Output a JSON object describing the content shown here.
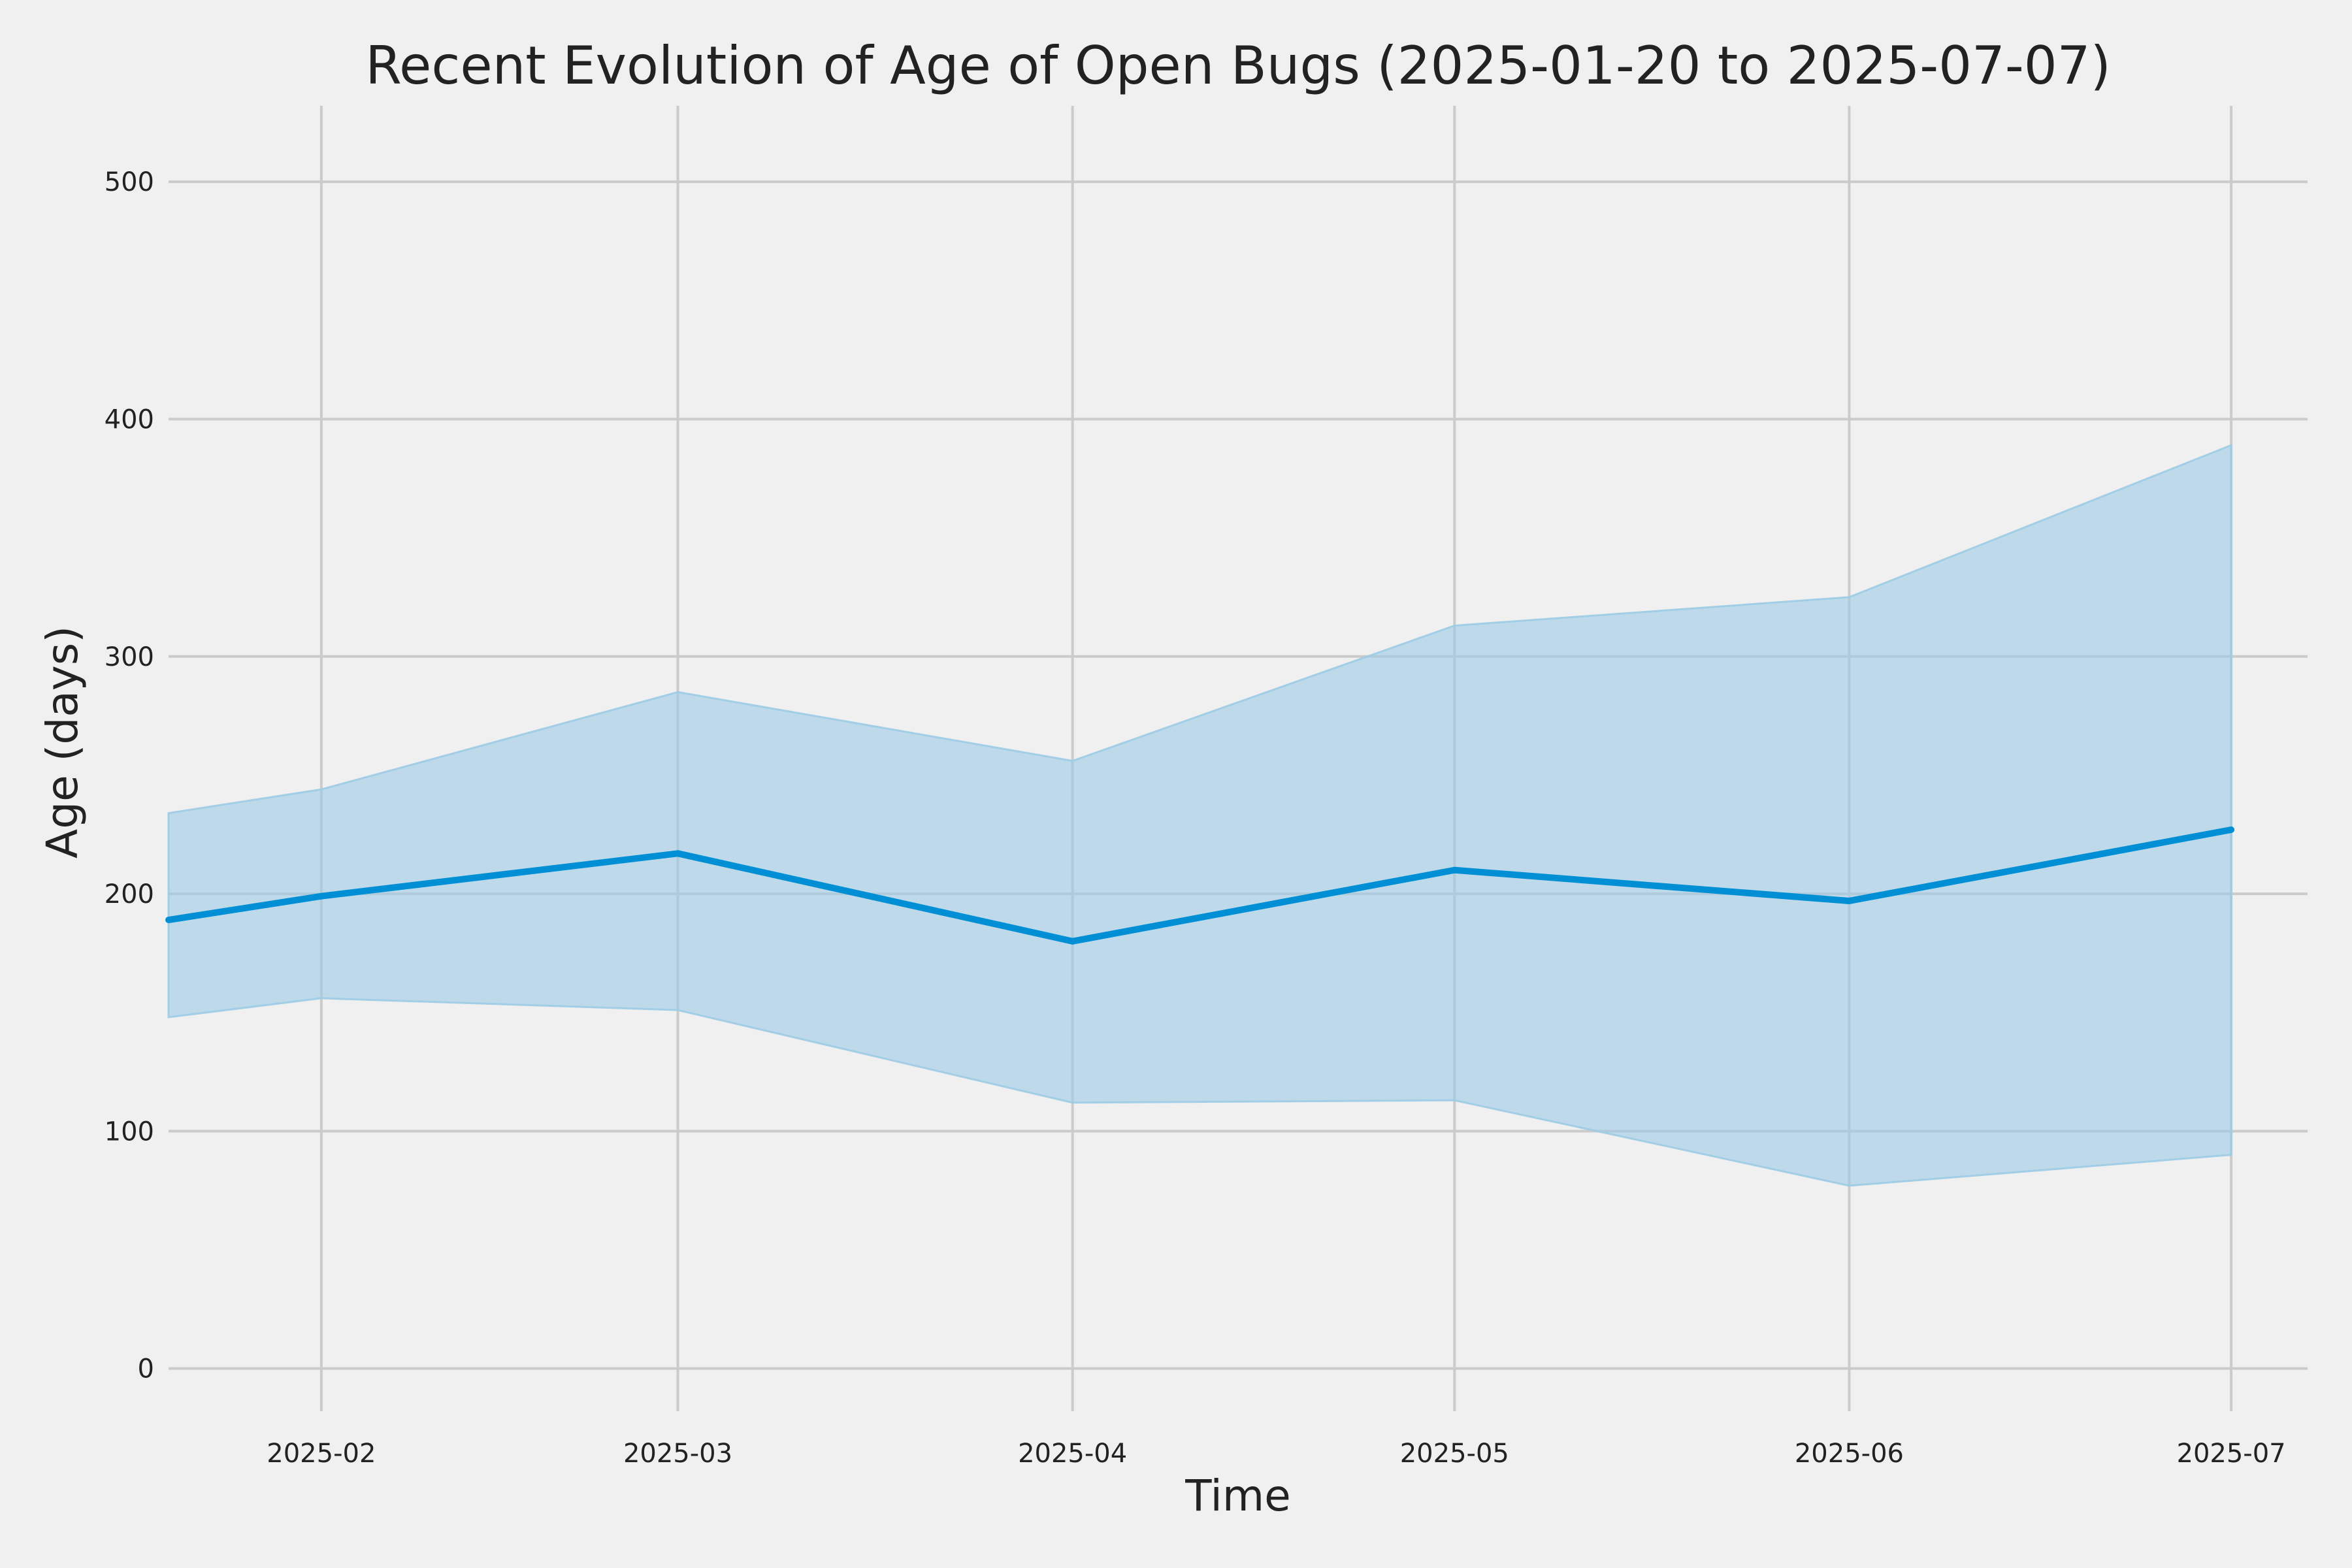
{
  "chart_data": {
    "type": "line",
    "title": "Recent Evolution of Age of Open Bugs (2025-01-20 to 2025-07-07)",
    "xlabel": "Time",
    "ylabel": "Age (days)",
    "x_axis_type": "date",
    "xlim": [
      "2025-01-20",
      "2025-07-07"
    ],
    "ylim": [
      -18,
      532
    ],
    "x_ticks": [
      "2025-02",
      "2025-03",
      "2025-04",
      "2025-05",
      "2025-06",
      "2025-07"
    ],
    "y_ticks": [
      0,
      100,
      200,
      300,
      400,
      500
    ],
    "grid": true,
    "legend": false,
    "x": [
      "2025-01-20",
      "2025-02-01",
      "2025-03-01",
      "2025-04-01",
      "2025-05-01",
      "2025-06-01",
      "2025-07-01"
    ],
    "series": [
      {
        "values": [
          189,
          199,
          217,
          180,
          210,
          197,
          227
        ],
        "color": "#008fd5"
      }
    ],
    "band": {
      "lower": [
        148,
        156,
        151,
        112,
        113,
        77,
        90
      ],
      "upper": [
        234,
        244,
        285,
        256,
        313,
        325,
        389
      ],
      "color": "#9ccbe6"
    }
  }
}
